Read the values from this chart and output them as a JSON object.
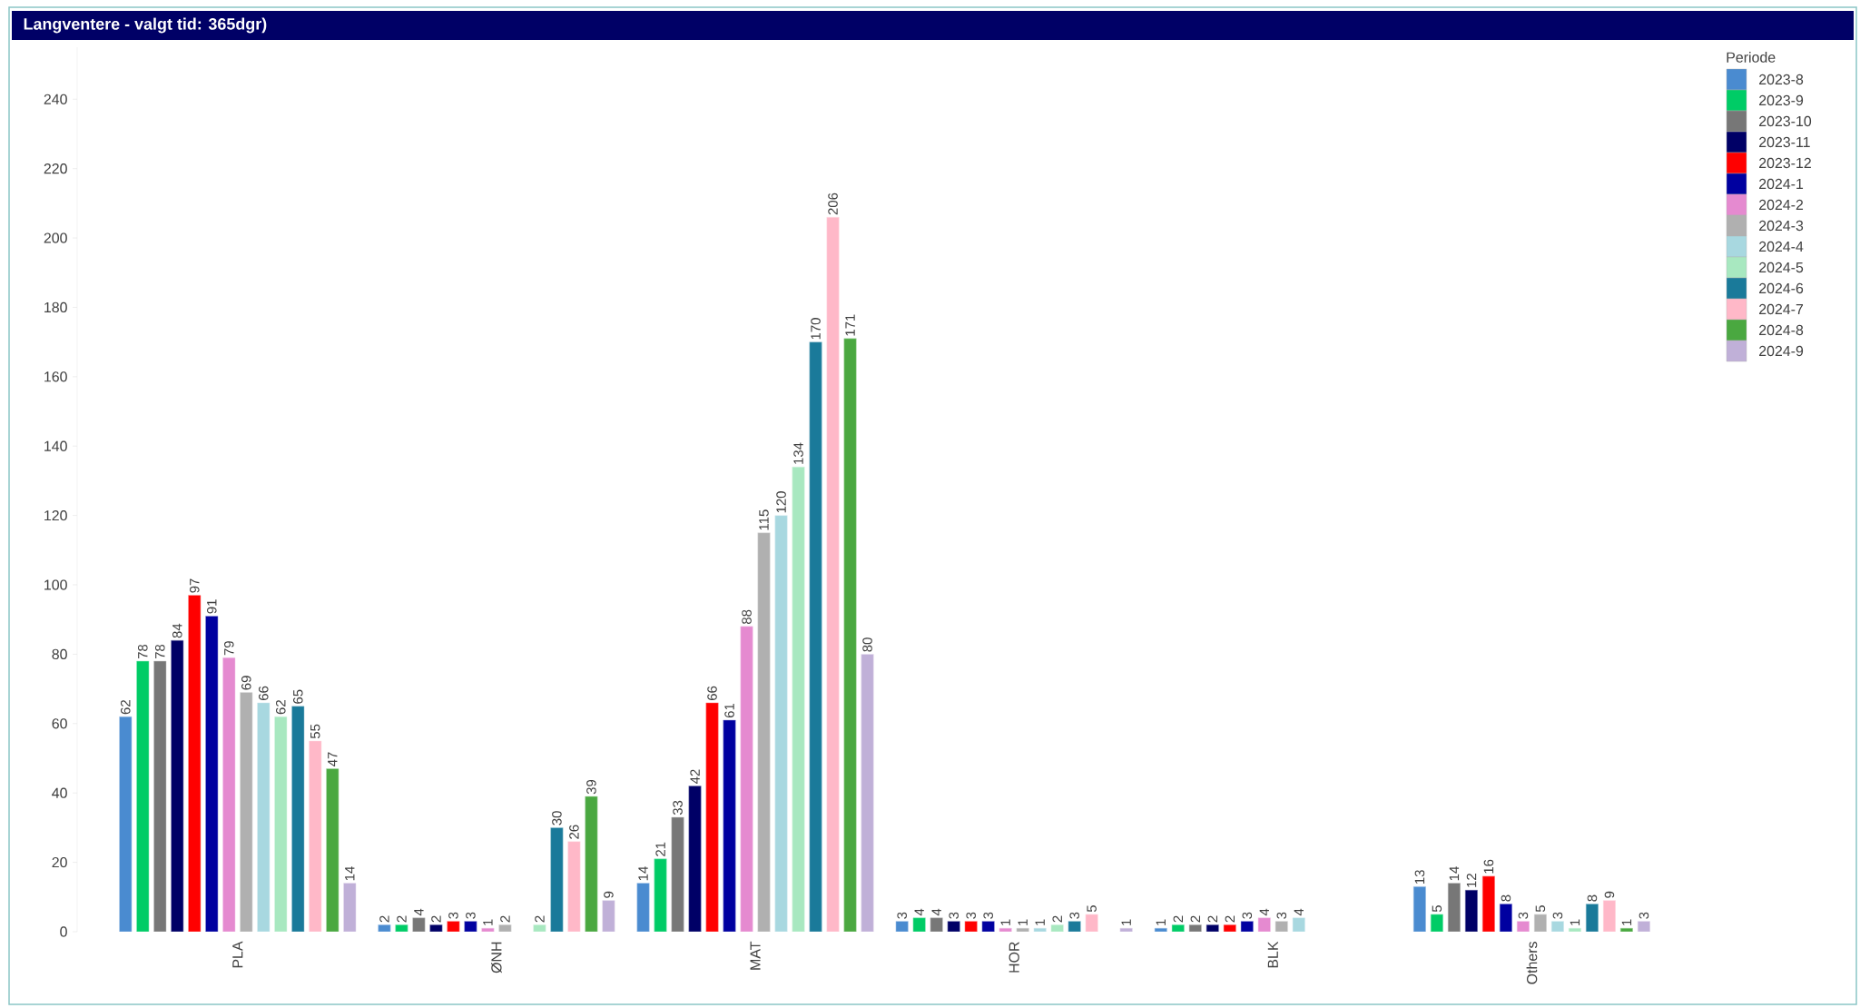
{
  "chart_data": {
    "type": "bar",
    "title": "Langventere - valgt tid: 365dgr)",
    "categories": [
      "PLA",
      "ØNH",
      "MAT",
      "HOR",
      "BLK",
      "Others"
    ],
    "legend_title": "Periode",
    "legend": "top right",
    "data_labels": true,
    "ylim": [
      0,
      255
    ],
    "yticks": [
      0,
      20,
      40,
      60,
      80,
      100,
      120,
      140,
      160,
      180,
      200,
      220,
      240
    ],
    "grid": false,
    "series": [
      {
        "name": "2023-8",
        "color": "#4a8bd0",
        "values": [
          62,
          2,
          14,
          3,
          1,
          13
        ]
      },
      {
        "name": "2023-9",
        "color": "#00cc66",
        "values": [
          78,
          2,
          21,
          4,
          2,
          5
        ]
      },
      {
        "name": "2023-10",
        "color": "#777777",
        "values": [
          78,
          4,
          33,
          4,
          2,
          14
        ]
      },
      {
        "name": "2023-11",
        "color": "#000066",
        "values": [
          84,
          2,
          42,
          3,
          2,
          12
        ]
      },
      {
        "name": "2023-12",
        "color": "#ff0000",
        "values": [
          97,
          3,
          66,
          3,
          2,
          16
        ]
      },
      {
        "name": "2024-1",
        "color": "#0000a0",
        "values": [
          91,
          3,
          61,
          3,
          3,
          8
        ]
      },
      {
        "name": "2024-2",
        "color": "#e58ad0",
        "values": [
          79,
          1,
          88,
          1,
          4,
          3
        ]
      },
      {
        "name": "2024-3",
        "color": "#b0b0b0",
        "values": [
          69,
          2,
          115,
          1,
          3,
          5
        ]
      },
      {
        "name": "2024-4",
        "color": "#a8d8e0",
        "values": [
          66,
          null,
          120,
          1,
          4,
          3
        ]
      },
      {
        "name": "2024-5",
        "color": "#a8e8c0",
        "values": [
          62,
          2,
          134,
          2,
          null,
          1
        ]
      },
      {
        "name": "2024-6",
        "color": "#1a7a9a",
        "values": [
          65,
          30,
          170,
          3,
          null,
          8
        ]
      },
      {
        "name": "2024-7",
        "color": "#ffb8c8",
        "values": [
          55,
          26,
          206,
          5,
          null,
          9
        ]
      },
      {
        "name": "2024-8",
        "color": "#4aa840",
        "values": [
          47,
          39,
          171,
          null,
          null,
          1
        ]
      },
      {
        "name": "2024-9",
        "color": "#c0b0d8",
        "values": [
          14,
          9,
          80,
          1,
          null,
          3
        ]
      }
    ]
  }
}
